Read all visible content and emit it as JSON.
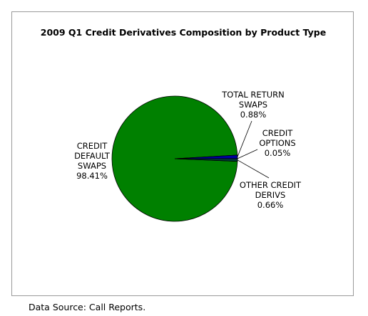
{
  "chart_data": {
    "type": "pie",
    "title": "2009 Q1 Credit Derivatives Composition by Product Type",
    "slices": [
      {
        "label_lines": [
          "CREDIT",
          "DEFAULT",
          "SWAPS"
        ],
        "value_label": "98.41%",
        "value": 98.41,
        "color": "#008000"
      },
      {
        "label_lines": [
          "TOTAL RETURN",
          "SWAPS"
        ],
        "value_label": "0.88%",
        "value": 0.88,
        "color": "#0000a0"
      },
      {
        "label_lines": [
          "CREDIT",
          "OPTIONS"
        ],
        "value_label": "0.05%",
        "value": 0.05,
        "color": "#7fa8d8"
      },
      {
        "label_lines": [
          "OTHER CREDIT",
          "DERIVS"
        ],
        "value_label": "0.66%",
        "value": 0.66,
        "color": "#003c3c"
      }
    ],
    "legend": "none"
  },
  "footer": {
    "source": "Data Source: Call Reports."
  }
}
